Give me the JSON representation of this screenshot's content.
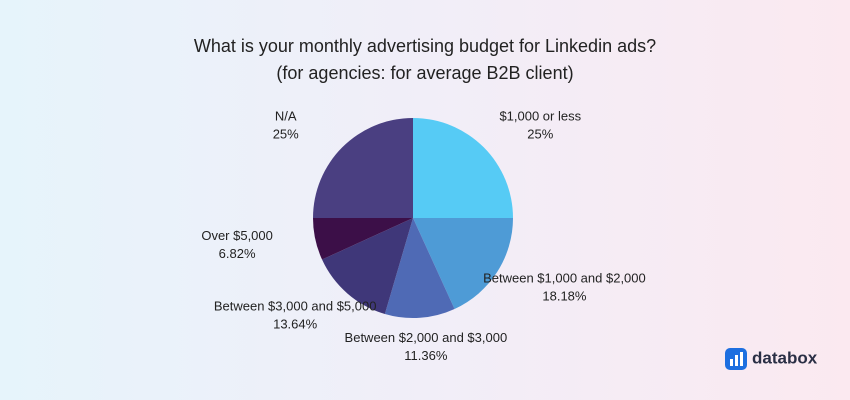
{
  "chart_data": {
    "type": "pie",
    "title": "What is your monthly advertising budget for Linkedin ads?",
    "subtitle": "(for agencies: for average B2B client)",
    "categories": [
      "$1,000 or less",
      "Between $1,000 and $2,000",
      "Between $2,000 and $3,000",
      "Between $3,000 and $5,000",
      "Over $5,000",
      "N/A"
    ],
    "values": [
      25,
      18.18,
      11.36,
      13.64,
      6.82,
      25
    ],
    "value_labels": [
      "25%",
      "18.18%",
      "11.36%",
      "13.64%",
      "6.82%",
      "25%"
    ],
    "colors": [
      "#56cbf5",
      "#4e9bd6",
      "#4f6ab5",
      "#3f3779",
      "#3c0f48",
      "#4a3f81"
    ]
  },
  "brand": "databox"
}
